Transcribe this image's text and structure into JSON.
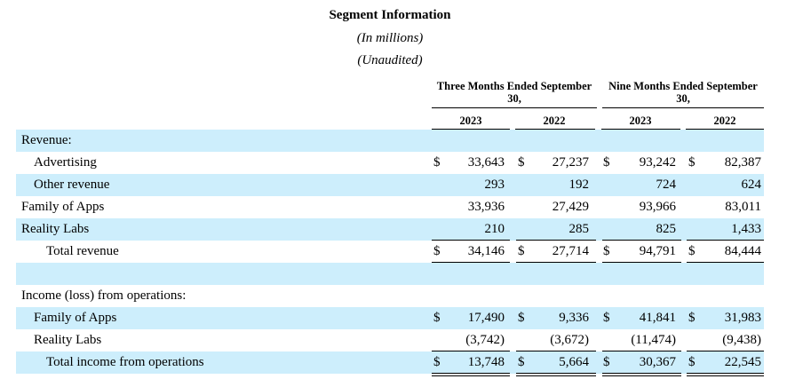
{
  "header": {
    "title": "Segment Information",
    "subtitle_units": "(In millions)",
    "subtitle_audit": "(Unaudited)"
  },
  "columns": {
    "group1": "Three Months Ended September 30,",
    "group2": "Nine Months Ended September 30,",
    "years": [
      "2023",
      "2022",
      "2023",
      "2022"
    ]
  },
  "rows": [
    {
      "label": "Revenue:",
      "values": [
        "",
        "",
        "",
        ""
      ],
      "currency": false
    },
    {
      "label": "Advertising",
      "values": [
        "33,643",
        "27,237",
        "93,242",
        "82,387"
      ],
      "currency": true
    },
    {
      "label": "Other revenue",
      "values": [
        "293",
        "192",
        "724",
        "624"
      ],
      "currency": false
    },
    {
      "label": "Family of Apps",
      "values": [
        "33,936",
        "27,429",
        "93,966",
        "83,011"
      ],
      "currency": false
    },
    {
      "label": "Reality Labs",
      "values": [
        "210",
        "285",
        "825",
        "1,433"
      ],
      "currency": false
    },
    {
      "label": "Total revenue",
      "values": [
        "34,146",
        "27,714",
        "94,791",
        "84,444"
      ],
      "currency": true
    },
    {
      "label": "",
      "values": [
        "",
        "",
        "",
        ""
      ],
      "currency": false
    },
    {
      "label": "Income (loss) from operations:",
      "values": [
        "",
        "",
        "",
        ""
      ],
      "currency": false
    },
    {
      "label": "Family of Apps",
      "values": [
        "17,490",
        "9,336",
        "41,841",
        "31,983"
      ],
      "currency": true
    },
    {
      "label": "Reality Labs",
      "values": [
        "(3,742)",
        "(3,672)",
        "(11,474)",
        "(9,438)"
      ],
      "currency": false
    },
    {
      "label": "Total income from operations",
      "values": [
        "13,748",
        "5,664",
        "30,367",
        "22,545"
      ],
      "currency": true
    }
  ],
  "currency_symbol": "$"
}
